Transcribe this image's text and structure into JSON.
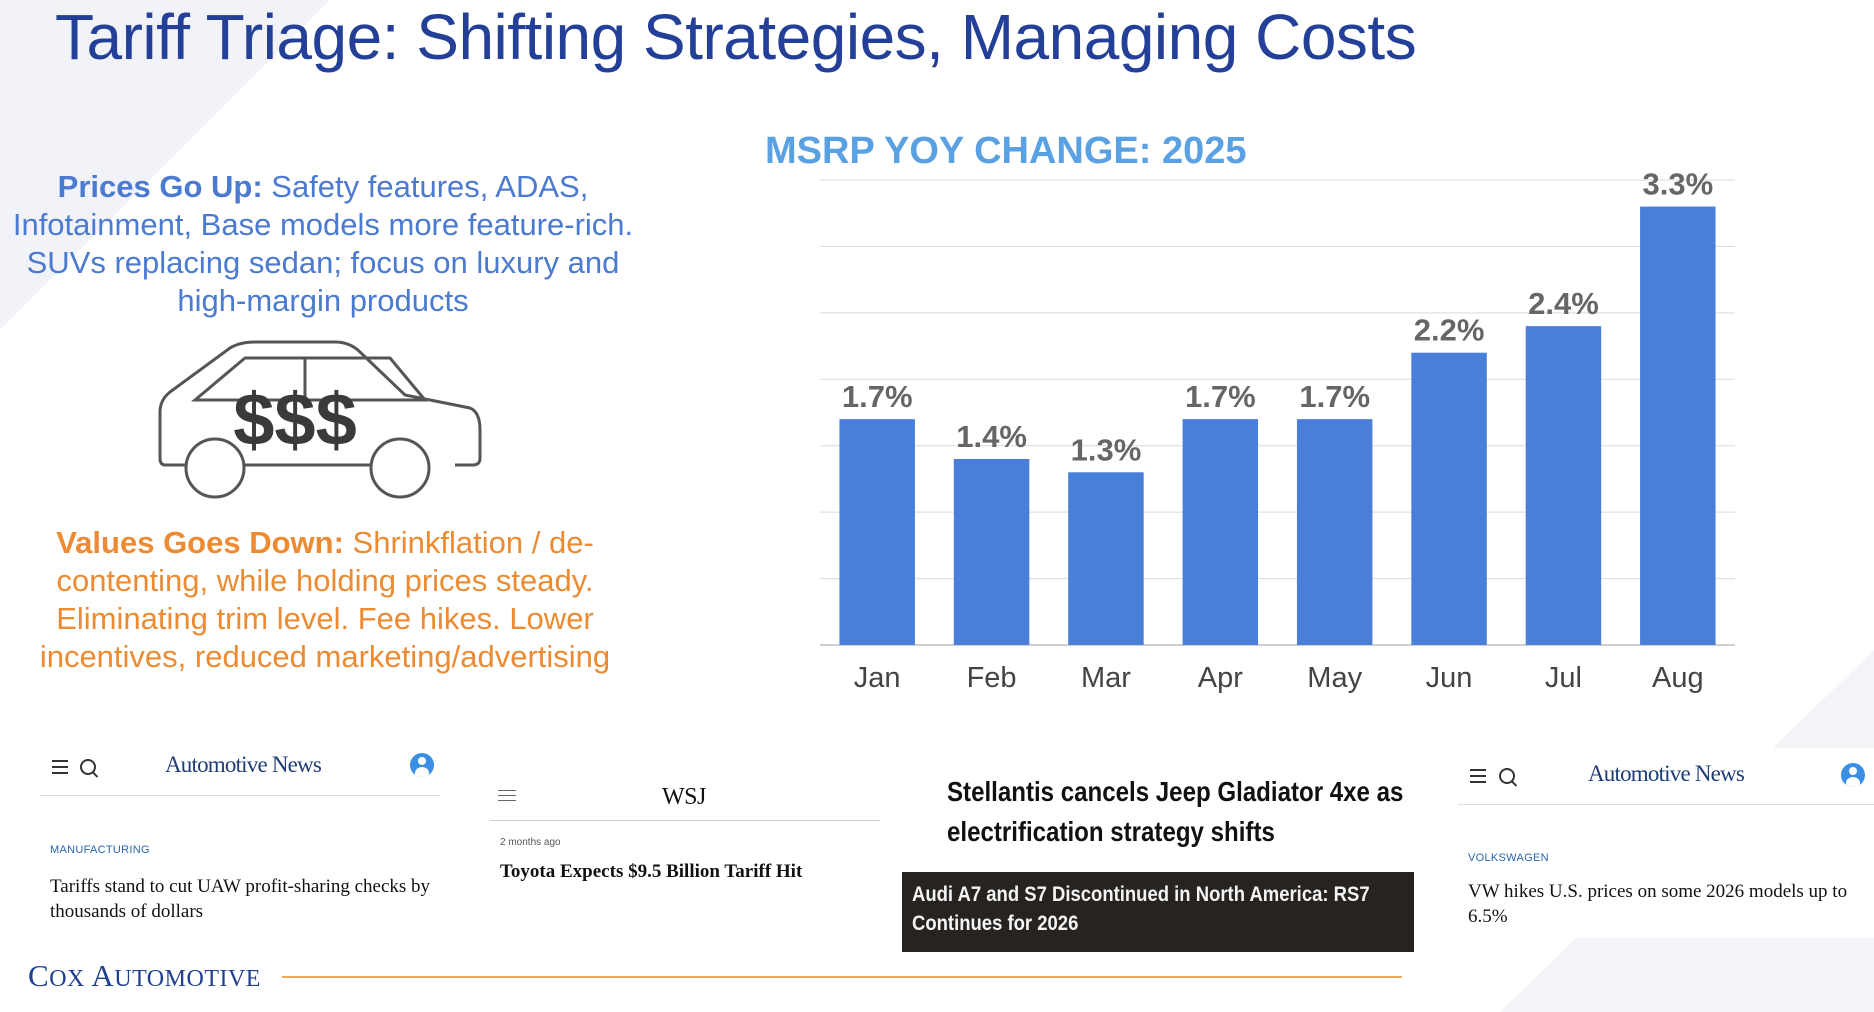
{
  "slide": {
    "title": "Tariff Triage: Shifting Strategies, Managing Costs"
  },
  "left_panel": {
    "prices": {
      "heading": "Prices Go Up:",
      "body": " Safety features, ADAS, Infotainment, Base models more feature-rich. SUVs replacing sedan; focus on luxury and high-margin products"
    },
    "car_icon": {
      "label": "$$$",
      "icon": "car-dollars-icon"
    },
    "values": {
      "heading": "Values Goes Down:",
      "body": " Shrinkflation / de-contenting, while holding prices steady. Eliminating trim level. Fee hikes. Lower incentives, reduced marketing/advertising"
    }
  },
  "chart_data": {
    "type": "bar",
    "title": "MSRP YOY CHANGE: 2025",
    "categories": [
      "Jan",
      "Feb",
      "Mar",
      "Apr",
      "May",
      "Jun",
      "Jul",
      "Aug"
    ],
    "values": [
      1.7,
      1.4,
      1.3,
      1.7,
      1.7,
      2.2,
      2.4,
      3.3
    ],
    "value_labels": [
      "1.7%",
      "1.4%",
      "1.3%",
      "1.7%",
      "1.7%",
      "2.2%",
      "2.4%",
      "3.3%"
    ],
    "xlabel": "",
    "ylabel": "",
    "ylim": [
      0,
      3.5
    ],
    "grid": true,
    "legend": "none",
    "bar_color": "#4a7fd9"
  },
  "news": {
    "an_left": {
      "logo": "Automotive News",
      "section": "MANUFACTURING",
      "headline": "Tariffs stand to cut UAW profit-sharing checks by thousands of dollars"
    },
    "wsj": {
      "logo": "WSJ",
      "time": "2 months ago",
      "headline": "Toyota Expects $9.5 Billion Tariff Hit"
    },
    "stellantis": {
      "headline_line1": "Stellantis cancels Jeep Gladiator 4xe as",
      "headline_line2": "electrification strategy shifts"
    },
    "audi": {
      "headline_line1": "Audi A7 and S7 Discontinued in North America: RS7",
      "headline_line2": "Continues for 2026"
    },
    "an_right": {
      "logo": "Automotive News",
      "section": "VOLKSWAGEN",
      "headline": "VW hikes U.S. prices on some 2026 models up to 6.5%"
    }
  },
  "footer": {
    "logo_c": "C",
    "logo_ox": "OX ",
    "logo_a": "A",
    "logo_utomotive": "UTOMOTIVE"
  },
  "colors": {
    "title": "#233f97",
    "prices_text": "#4b7ad1",
    "values_text": "#ec8b32",
    "chart_title": "#5aa1e4",
    "bars": "#4a7fd9"
  }
}
